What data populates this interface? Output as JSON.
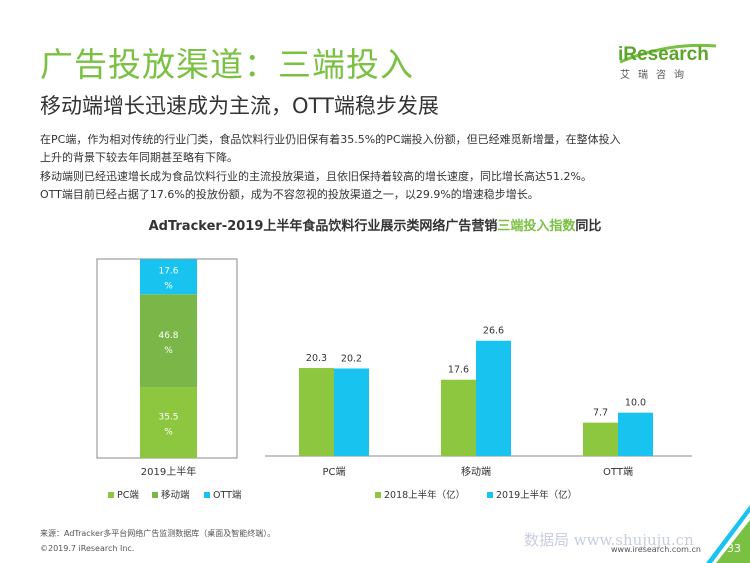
{
  "header": {
    "title": "广告投放渠道：三端投入",
    "subtitle": "移动端增长迅速成为主流，OTT端稳步发展"
  },
  "logo": {
    "word": "iResearch",
    "tagline": "艾瑞咨询"
  },
  "paragraphs": [
    "在PC端，作为相对传统的行业门类，食品饮料行业仍旧保有着35.5%的PC端投入份额，但已经难觅新增量，在整体投入",
    "上升的背景下较去年同期甚至略有下降。",
    "移动端则已经迅速增长成为食品饮料行业的主流投放渠道，且依旧保持着较高的增长速度，同比增长高达51.2%。",
    "OTT端目前已经占据了17.6%的投放份额，成为不容忽视的投放渠道之一，以29.9%的增速稳步增长。"
  ],
  "chart_title": {
    "prefix": "AdTracker-2019上半年食品饮料行业展示类网络广告营销",
    "highlight": "三端投入指数",
    "suffix": "同比"
  },
  "colors": {
    "pc": "#8dc63f",
    "mobile": "#7ab648",
    "ott": "#19c3f0",
    "h1": "#8dc63f",
    "h2": "#19c3f0"
  },
  "chart_data": [
    {
      "type": "bar",
      "stacked": true,
      "categories": [
        "2019上半年"
      ],
      "series": [
        {
          "name": "PC端",
          "values": [
            35.5
          ],
          "value_labels": [
            "35.5\n%"
          ]
        },
        {
          "name": "移动端",
          "values": [
            46.8
          ],
          "value_labels": [
            "46.8\n%"
          ]
        },
        {
          "name": "OTT端",
          "values": [
            17.6
          ],
          "value_labels": [
            "17.6\n%"
          ]
        }
      ],
      "ylim": [
        0,
        100
      ],
      "legend": "bottom"
    },
    {
      "type": "bar",
      "categories": [
        "PC端",
        "移动端",
        "OTT端"
      ],
      "series": [
        {
          "name": "2018上半年（亿）",
          "values": [
            20.3,
            17.6,
            7.7
          ]
        },
        {
          "name": "2019上半年（亿）",
          "values": [
            20.2,
            26.6,
            10.0
          ]
        }
      ],
      "value_labels": [
        [
          "20.3",
          "17.6",
          "7.7"
        ],
        [
          "20.2",
          "26.6",
          "10.0"
        ]
      ],
      "ylim": [
        0,
        30
      ],
      "legend": "bottom"
    }
  ],
  "footer": {
    "source": "来源：AdTracker多平台网络广告监测数据库（桌面及智能终端）。",
    "copyright": "©2019.7 iResearch Inc.",
    "website": "www.iresearch.com.cn",
    "watermark": "数据局 www.shujuju.cn",
    "page": "33"
  }
}
